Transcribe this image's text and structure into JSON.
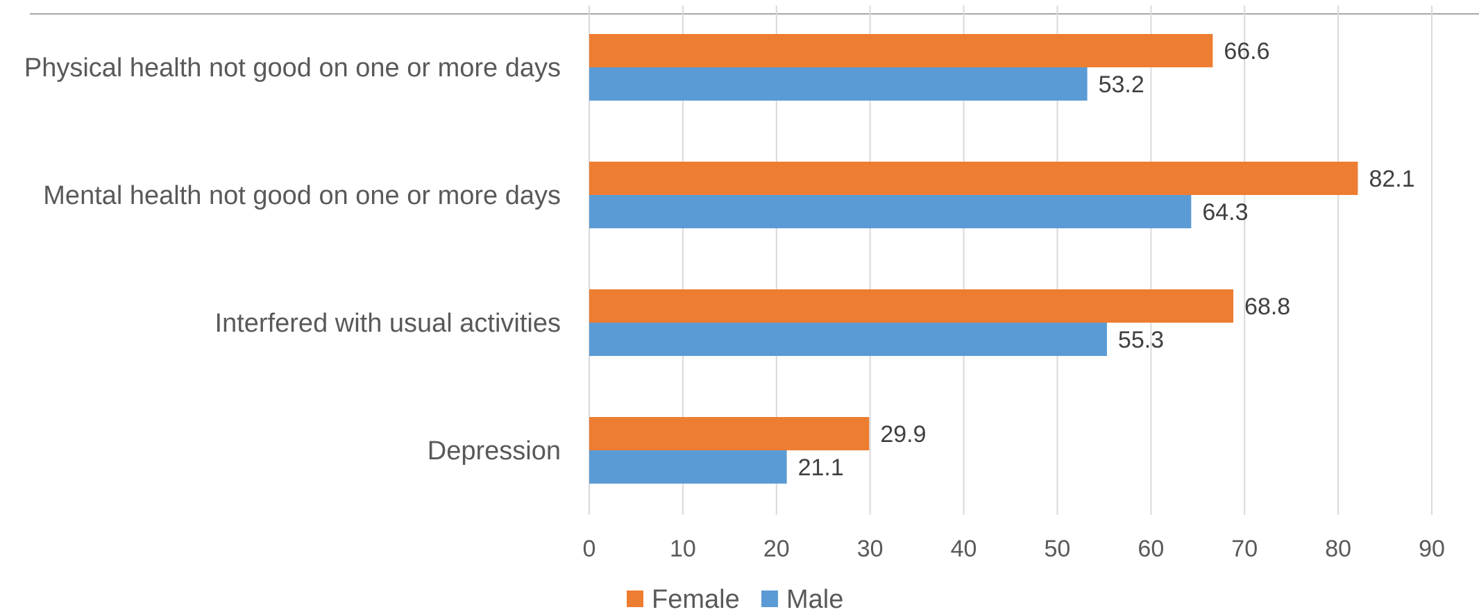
{
  "chart_data": {
    "type": "bar",
    "orientation": "horizontal",
    "categories": [
      "Physical health not good on one or more days",
      "Mental health not good on one or more days",
      "Interfered with usual activities",
      "Depression"
    ],
    "series": [
      {
        "name": "Female",
        "color": "#ED7D31",
        "values": [
          66.6,
          82.1,
          68.8,
          29.9
        ]
      },
      {
        "name": "Male",
        "color": "#5B9BD5",
        "values": [
          53.2,
          64.3,
          55.3,
          21.1
        ]
      }
    ],
    "xlim": [
      0,
      90
    ],
    "xticks": [
      "0",
      "10",
      "20",
      "30",
      "40",
      "50",
      "60",
      "70",
      "80",
      "90"
    ],
    "grid": true,
    "legend": "bottom",
    "data_labels": true
  }
}
